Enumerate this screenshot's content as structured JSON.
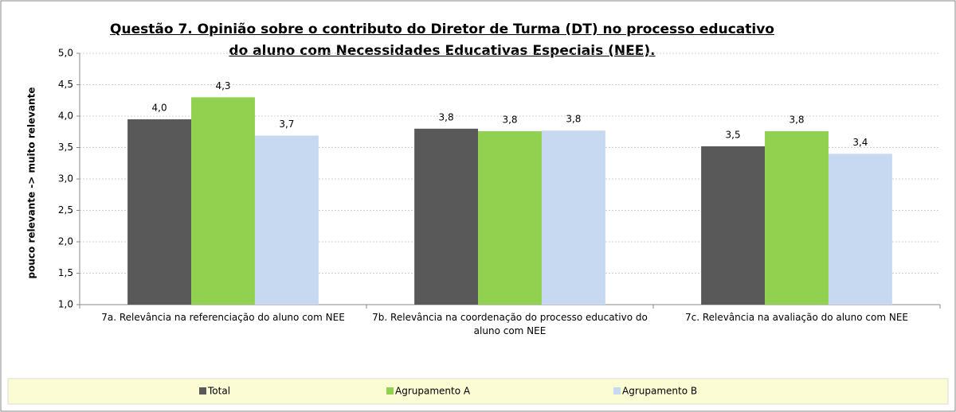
{
  "chart_data": {
    "type": "bar",
    "title": "Questão 7. Opinião sobre o contributo do Diretor de Turma (DT) no processo educativo do aluno com Necessidades Educativas Especiais (NEE).",
    "y_label": "pouco relevante  ->  muito relevante",
    "categories": [
      "7a. Relevância na referenciação do aluno com NEE",
      "7b. Relevância na coordenação do processo educativo do aluno com NEE",
      "7c. Relevância na avaliação do aluno com NEE"
    ],
    "series": [
      {
        "name": "Total",
        "color": "#595959",
        "values": [
          3.95,
          3.8,
          3.52
        ],
        "value_labels": [
          "4,0",
          "3,8",
          "3,5"
        ]
      },
      {
        "name": "Agrupamento A",
        "color": "#92d050",
        "values": [
          4.3,
          3.76,
          3.76
        ],
        "value_labels": [
          "4,3",
          "3,8",
          "3,8"
        ]
      },
      {
        "name": "Agrupamento B",
        "color": "#c6d9f1",
        "values": [
          3.69,
          3.77,
          3.4
        ],
        "value_labels": [
          "3,7",
          "3,8",
          "3,4"
        ]
      }
    ],
    "ylim": [
      1,
      5
    ],
    "yticks": [
      {
        "value": 1,
        "label": "1,0"
      },
      {
        "value": 1.5,
        "label": "1,5"
      },
      {
        "value": 2,
        "label": "2,0"
      },
      {
        "value": 2.5,
        "label": "2,5"
      },
      {
        "value": 3,
        "label": "3,0"
      },
      {
        "value": 3.5,
        "label": "3,5"
      },
      {
        "value": 4,
        "label": "4,0"
      },
      {
        "value": 4.5,
        "label": "4,5"
      },
      {
        "value": 5,
        "label": "5,0"
      }
    ],
    "grid": true,
    "legend": "bottom"
  }
}
